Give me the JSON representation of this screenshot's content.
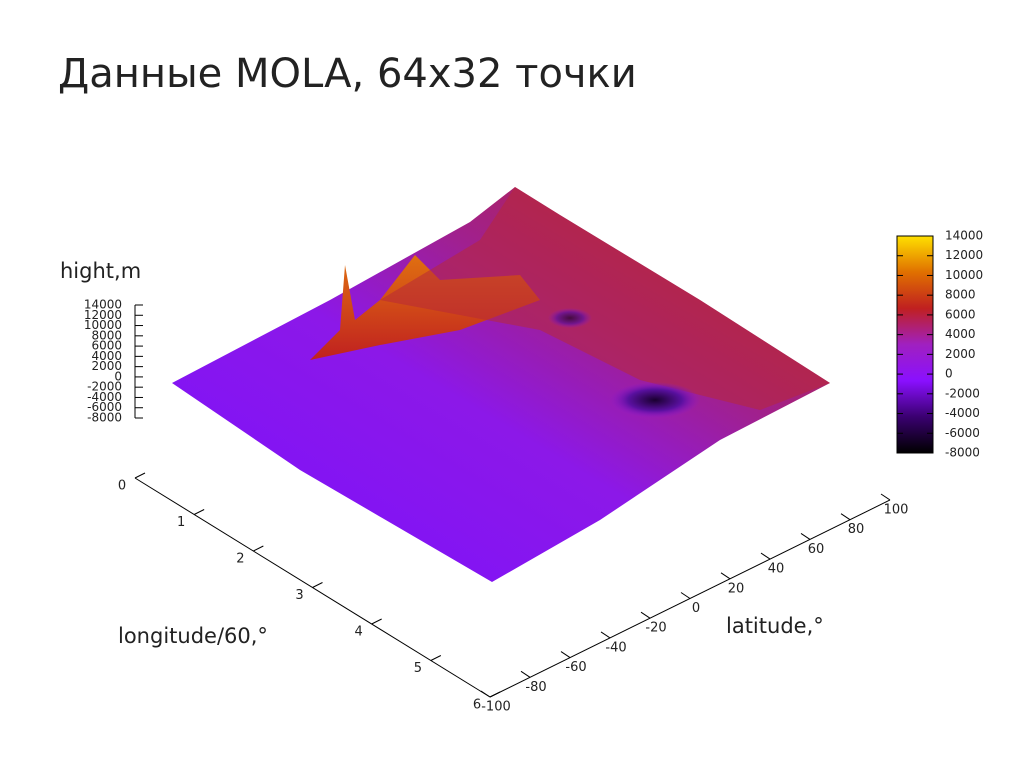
{
  "chart_data": {
    "type": "surface3d",
    "title": "Данные MOLA, 64x32 точки",
    "zlabel": "hight,m",
    "xlabel": "longitude/60,°",
    "ylabel": "latitude,°",
    "xlim": [
      0,
      6
    ],
    "xticks": [
      0,
      1,
      2,
      3,
      4,
      5,
      6
    ],
    "ylim": [
      -100,
      100
    ],
    "yticks": [
      -100,
      -80,
      -60,
      -40,
      -20,
      0,
      20,
      40,
      60,
      80,
      100
    ],
    "zlim": [
      -8000,
      14000
    ],
    "zticks": [
      14000,
      12000,
      10000,
      8000,
      6000,
      4000,
      2000,
      0,
      -2000,
      -4000,
      -6000,
      -8000
    ],
    "cblim": [
      -8000,
      14000
    ],
    "cbticks": [
      14000,
      12000,
      10000,
      8000,
      6000,
      4000,
      2000,
      0,
      -2000,
      -4000,
      -6000,
      -8000
    ],
    "palette": [
      "#000000",
      "#3a0070",
      "#8a10ff",
      "#a020c0",
      "#c02020",
      "#e07000",
      "#ffe000"
    ]
  }
}
